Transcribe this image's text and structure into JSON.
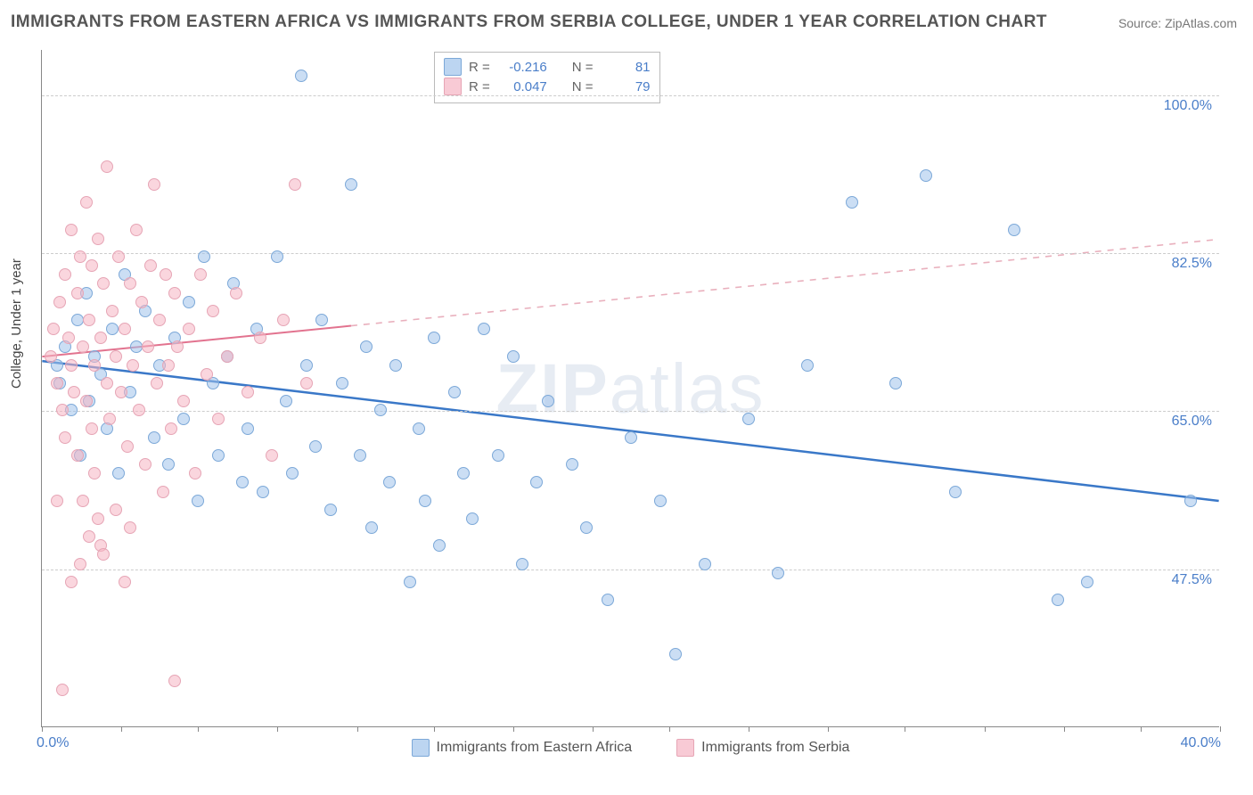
{
  "title": "IMMIGRANTS FROM EASTERN AFRICA VS IMMIGRANTS FROM SERBIA COLLEGE, UNDER 1 YEAR CORRELATION CHART",
  "source": "Source: ZipAtlas.com",
  "ylabel": "College, Under 1 year",
  "watermark_bold": "ZIP",
  "watermark_thin": "atlas",
  "chart": {
    "type": "scatter",
    "xlim": [
      0,
      40
    ],
    "ylim": [
      30,
      105
    ],
    "x_axis_label_min": "0.0%",
    "x_axis_label_max": "40.0%",
    "xtick_positions": [
      0,
      2.7,
      5.3,
      8.0,
      10.7,
      13.3,
      16.0,
      18.7,
      21.3,
      24.0,
      26.7,
      29.3,
      32.0,
      34.7,
      37.3,
      40.0
    ],
    "y_gridlines": [
      47.5,
      65.0,
      82.5,
      100.0
    ],
    "y_gridline_labels": [
      "47.5%",
      "65.0%",
      "82.5%",
      "100.0%"
    ],
    "background_color": "#ffffff",
    "grid_color": "#cccccc",
    "axis_color": "#888888",
    "label_color": "#4a7ec9",
    "title_fontsize": 19,
    "axis_label_fontsize": 16,
    "ylabel_fontsize": 15,
    "marker_radius": 7,
    "series": [
      {
        "name": "Immigrants from Eastern Africa",
        "fill": "rgba(160,195,235,0.55)",
        "stroke": "#7ca8d8",
        "R": -0.216,
        "N": 81,
        "trend": {
          "x1": 0,
          "y1": 70.5,
          "x2": 40,
          "y2": 55.0,
          "dashed_from_x": 40,
          "solid_color": "#3a78c8",
          "width": 2.5
        },
        "points": [
          [
            0.5,
            70
          ],
          [
            0.6,
            68
          ],
          [
            0.8,
            72
          ],
          [
            1.0,
            65
          ],
          [
            1.2,
            75
          ],
          [
            1.3,
            60
          ],
          [
            1.5,
            78
          ],
          [
            1.6,
            66
          ],
          [
            1.8,
            71
          ],
          [
            2.0,
            69
          ],
          [
            2.2,
            63
          ],
          [
            2.4,
            74
          ],
          [
            2.6,
            58
          ],
          [
            2.8,
            80
          ],
          [
            3.0,
            67
          ],
          [
            3.2,
            72
          ],
          [
            3.5,
            76
          ],
          [
            3.8,
            62
          ],
          [
            4.0,
            70
          ],
          [
            4.3,
            59
          ],
          [
            4.5,
            73
          ],
          [
            4.8,
            64
          ],
          [
            5.0,
            77
          ],
          [
            5.3,
            55
          ],
          [
            5.5,
            82
          ],
          [
            5.8,
            68
          ],
          [
            6.0,
            60
          ],
          [
            6.3,
            71
          ],
          [
            6.5,
            79
          ],
          [
            6.8,
            57
          ],
          [
            7.0,
            63
          ],
          [
            7.3,
            74
          ],
          [
            7.5,
            56
          ],
          [
            8.0,
            82
          ],
          [
            8.3,
            66
          ],
          [
            8.5,
            58
          ],
          [
            8.8,
            102
          ],
          [
            9.0,
            70
          ],
          [
            9.3,
            61
          ],
          [
            9.5,
            75
          ],
          [
            9.8,
            54
          ],
          [
            10.2,
            68
          ],
          [
            10.5,
            90
          ],
          [
            10.8,
            60
          ],
          [
            11.0,
            72
          ],
          [
            11.2,
            52
          ],
          [
            11.5,
            65
          ],
          [
            11.8,
            57
          ],
          [
            12.0,
            70
          ],
          [
            12.5,
            46
          ],
          [
            12.8,
            63
          ],
          [
            13.0,
            55
          ],
          [
            13.3,
            73
          ],
          [
            13.5,
            50
          ],
          [
            14.0,
            67
          ],
          [
            14.3,
            58
          ],
          [
            14.6,
            53
          ],
          [
            15.0,
            74
          ],
          [
            15.5,
            60
          ],
          [
            16.0,
            71
          ],
          [
            16.3,
            48
          ],
          [
            16.8,
            57
          ],
          [
            17.2,
            66
          ],
          [
            18.0,
            59
          ],
          [
            18.5,
            52
          ],
          [
            19.2,
            44
          ],
          [
            20.0,
            62
          ],
          [
            21.0,
            55
          ],
          [
            21.5,
            38
          ],
          [
            22.5,
            48
          ],
          [
            24.0,
            64
          ],
          [
            25.0,
            47
          ],
          [
            26.0,
            70
          ],
          [
            27.5,
            88
          ],
          [
            29.0,
            68
          ],
          [
            30.0,
            91
          ],
          [
            31.0,
            56
          ],
          [
            33.0,
            85
          ],
          [
            34.5,
            44
          ],
          [
            35.5,
            46
          ],
          [
            39.0,
            55
          ]
        ]
      },
      {
        "name": "Immigrants from Serbia",
        "fill": "rgba(245,180,195,0.55)",
        "stroke": "#e6a5b5",
        "R": 0.047,
        "N": 79,
        "trend": {
          "x1": 0,
          "y1": 71.0,
          "x2": 40,
          "y2": 84.0,
          "dashed_from_x": 10.5,
          "solid_color": "#e2738f",
          "dash_color": "#e9b0bd",
          "width": 2
        },
        "points": [
          [
            0.3,
            71
          ],
          [
            0.4,
            74
          ],
          [
            0.5,
            68
          ],
          [
            0.6,
            77
          ],
          [
            0.7,
            65
          ],
          [
            0.8,
            80
          ],
          [
            0.8,
            62
          ],
          [
            0.9,
            73
          ],
          [
            1.0,
            70
          ],
          [
            1.0,
            85
          ],
          [
            1.1,
            67
          ],
          [
            1.2,
            78
          ],
          [
            1.2,
            60
          ],
          [
            1.3,
            82
          ],
          [
            1.4,
            72
          ],
          [
            1.4,
            55
          ],
          [
            1.5,
            88
          ],
          [
            1.5,
            66
          ],
          [
            1.6,
            75
          ],
          [
            1.7,
            63
          ],
          [
            1.7,
            81
          ],
          [
            1.8,
            70
          ],
          [
            1.8,
            58
          ],
          [
            1.9,
            84
          ],
          [
            2.0,
            73
          ],
          [
            2.0,
            50
          ],
          [
            2.1,
            79
          ],
          [
            2.2,
            68
          ],
          [
            2.2,
            92
          ],
          [
            2.3,
            64
          ],
          [
            2.4,
            76
          ],
          [
            2.5,
            71
          ],
          [
            2.5,
            54
          ],
          [
            2.6,
            82
          ],
          [
            2.7,
            67
          ],
          [
            2.8,
            74
          ],
          [
            2.9,
            61
          ],
          [
            3.0,
            79
          ],
          [
            3.0,
            52
          ],
          [
            3.1,
            70
          ],
          [
            3.2,
            85
          ],
          [
            3.3,
            65
          ],
          [
            3.4,
            77
          ],
          [
            3.5,
            59
          ],
          [
            3.6,
            72
          ],
          [
            3.7,
            81
          ],
          [
            3.8,
            90
          ],
          [
            3.9,
            68
          ],
          [
            4.0,
            75
          ],
          [
            4.1,
            56
          ],
          [
            4.2,
            80
          ],
          [
            4.3,
            70
          ],
          [
            4.4,
            63
          ],
          [
            4.5,
            78
          ],
          [
            4.6,
            72
          ],
          [
            4.8,
            66
          ],
          [
            5.0,
            74
          ],
          [
            5.2,
            58
          ],
          [
            5.4,
            80
          ],
          [
            5.6,
            69
          ],
          [
            5.8,
            76
          ],
          [
            6.0,
            64
          ],
          [
            6.3,
            71
          ],
          [
            6.6,
            78
          ],
          [
            7.0,
            67
          ],
          [
            7.4,
            73
          ],
          [
            7.8,
            60
          ],
          [
            8.2,
            75
          ],
          [
            8.6,
            90
          ],
          [
            9.0,
            68
          ],
          [
            1.0,
            46
          ],
          [
            0.7,
            34
          ],
          [
            1.3,
            48
          ],
          [
            1.6,
            51
          ],
          [
            2.1,
            49
          ],
          [
            1.9,
            53
          ],
          [
            0.5,
            55
          ],
          [
            4.5,
            35
          ],
          [
            2.8,
            46
          ]
        ]
      }
    ]
  },
  "legend_top": {
    "rows": [
      {
        "R_label": "R =",
        "R": "-0.216",
        "N_label": "N =",
        "N": "81"
      },
      {
        "R_label": "R =",
        "R": "0.047",
        "N_label": "N =",
        "N": "79"
      }
    ]
  },
  "legend_bottom": [
    "Immigrants from Eastern Africa",
    "Immigrants from Serbia"
  ]
}
